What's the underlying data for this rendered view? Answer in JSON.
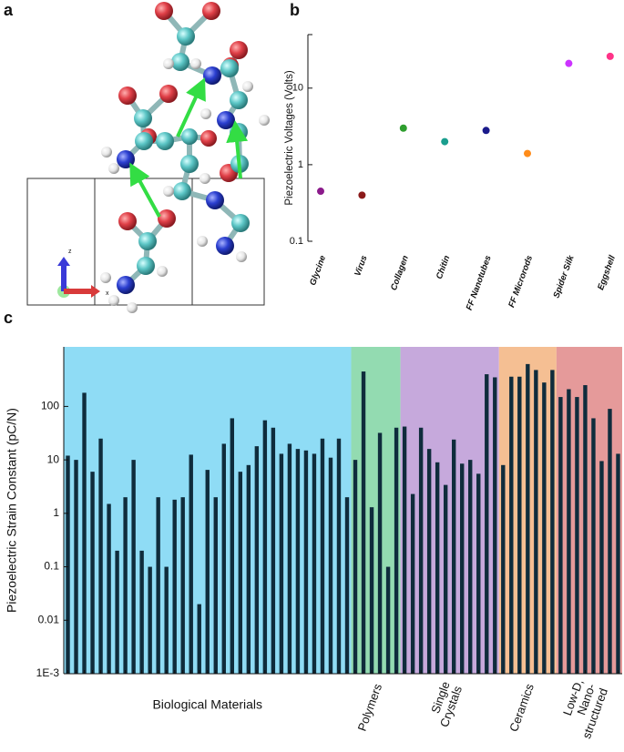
{
  "panel_labels": [
    "a",
    "b",
    "c"
  ],
  "triad_labels": [
    "z",
    "x"
  ],
  "chart_data": [
    {
      "type": "scatter",
      "ylabel": "Piezoelectric Voltages (Volts)",
      "categories": [
        "Glycine",
        "Virus",
        "Collagen",
        "Chitin",
        "FF Nanotubes",
        "FF Microrods",
        "Spider Silk",
        "Eggshell"
      ],
      "values": [
        0.45,
        0.4,
        3.0,
        2.0,
        2.8,
        1.4,
        21,
        26
      ],
      "colors": [
        "#8b1a8b",
        "#8b1a1a",
        "#2e9e2e",
        "#1a9e8e",
        "#1a1a8b",
        "#ff8c1a",
        "#cc33ff",
        "#ff3388"
      ],
      "ylim": [
        0.1,
        50
      ],
      "yticks": [
        0.1,
        1,
        10
      ],
      "log_y": true
    },
    {
      "type": "bar",
      "ylabel": "Piezoelectric Strain Constant (pC/N)",
      "ylim": [
        0.001,
        1300
      ],
      "yticks": [
        {
          "value": 0.001,
          "label": "1E-3"
        },
        0.01,
        0.1,
        1,
        10,
        100
      ],
      "log_y": true,
      "bar_color": "#0f2c3c",
      "series": [
        {
          "name": "Biological Materials",
          "color": "#8fdcf5",
          "values": [
            12,
            10,
            180,
            6,
            25,
            1.5,
            0.2,
            2,
            10,
            0.2,
            0.1,
            2,
            0.1,
            1.8,
            2,
            12.5,
            0.02,
            6.5,
            2,
            20,
            60,
            6,
            8,
            18,
            55,
            40,
            13,
            20,
            16,
            15,
            13,
            25,
            11,
            25,
            2
          ]
        },
        {
          "name": "Polymers",
          "color": "#93dbb1",
          "values": [
            10,
            450,
            1.3,
            32,
            0.1,
            40
          ]
        },
        {
          "name": "Single Crystals",
          "color": "#c6a9dc",
          "values": [
            42,
            2.3,
            40,
            16,
            9,
            3.4,
            24,
            8.5,
            10,
            5.5,
            400,
            350
          ]
        },
        {
          "name": "Ceramics",
          "color": "#f5bf93",
          "values": [
            8,
            360,
            360,
            620,
            480,
            280,
            480
          ]
        },
        {
          "name": "Low-D, Nano-structured",
          "color": "#e59a9a",
          "values": [
            150,
            210,
            150,
            250,
            60,
            9.5,
            90,
            13
          ]
        }
      ]
    }
  ]
}
